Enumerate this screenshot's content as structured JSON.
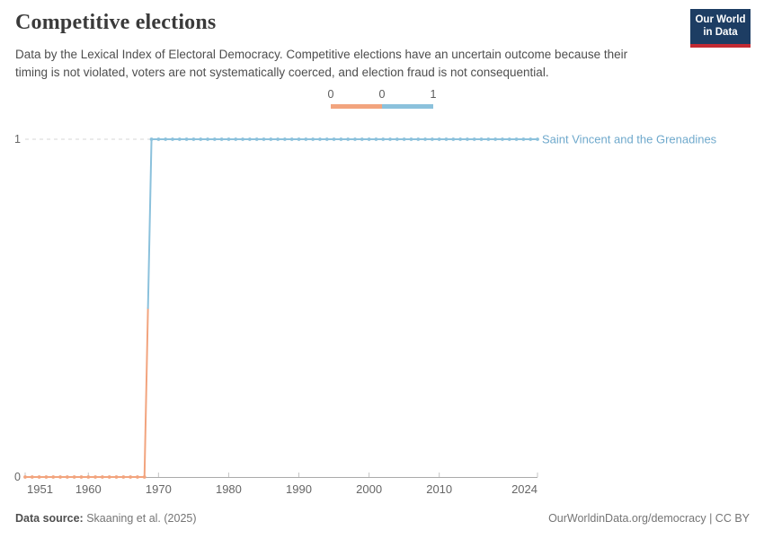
{
  "header": {
    "title": "Competitive elections",
    "subtitle": "Data by the Lexical Index of Electoral Democracy. Competitive elections have an uncertain outcome because their timing is not violated, voters are not systematically coerced, and election fraud is not consequential.",
    "logo": {
      "line1": "Our World",
      "line2": "in Data",
      "bg_color": "#1D3D63",
      "accent_color": "#C32A33"
    }
  },
  "legend": {
    "tick_labels": [
      "0",
      "0",
      "1"
    ]
  },
  "chart_data": {
    "type": "line",
    "step": true,
    "title": "Competitive elections",
    "xlabel": "",
    "ylabel": "",
    "x_range": [
      1951,
      2024
    ],
    "y_range": [
      0,
      1
    ],
    "x_ticks": [
      "1951",
      "1960",
      "1970",
      "1980",
      "1990",
      "2000",
      "2010",
      "2024"
    ],
    "y_ticks": [
      "0",
      "1"
    ],
    "grid": "dashed horizontal gridline at y=1",
    "legend_position": "top-center",
    "color_scale": [
      {
        "value": 0,
        "color": "#F2A47E"
      },
      {
        "value": 1,
        "color": "#8BC1DC"
      }
    ],
    "series": [
      {
        "name": "Saint Vincent and the Grenadines",
        "label_color": "#6FA9CC",
        "data_runs": [
          {
            "from_year": 1951,
            "to_year": 1968,
            "value": 0
          },
          {
            "from_year": 1969,
            "to_year": 2024,
            "value": 1
          }
        ]
      }
    ],
    "axis_colors": {
      "axis_line": "#ABABAB",
      "tick_mark": "#C4C4C4",
      "tick_label": "#666666",
      "gridline": "#D7D7D7"
    }
  },
  "footer": {
    "source_label": "Data source:",
    "source_value": " Skaaning et al. (2025)",
    "credit": "OurWorldinData.org/democracy | CC BY"
  }
}
